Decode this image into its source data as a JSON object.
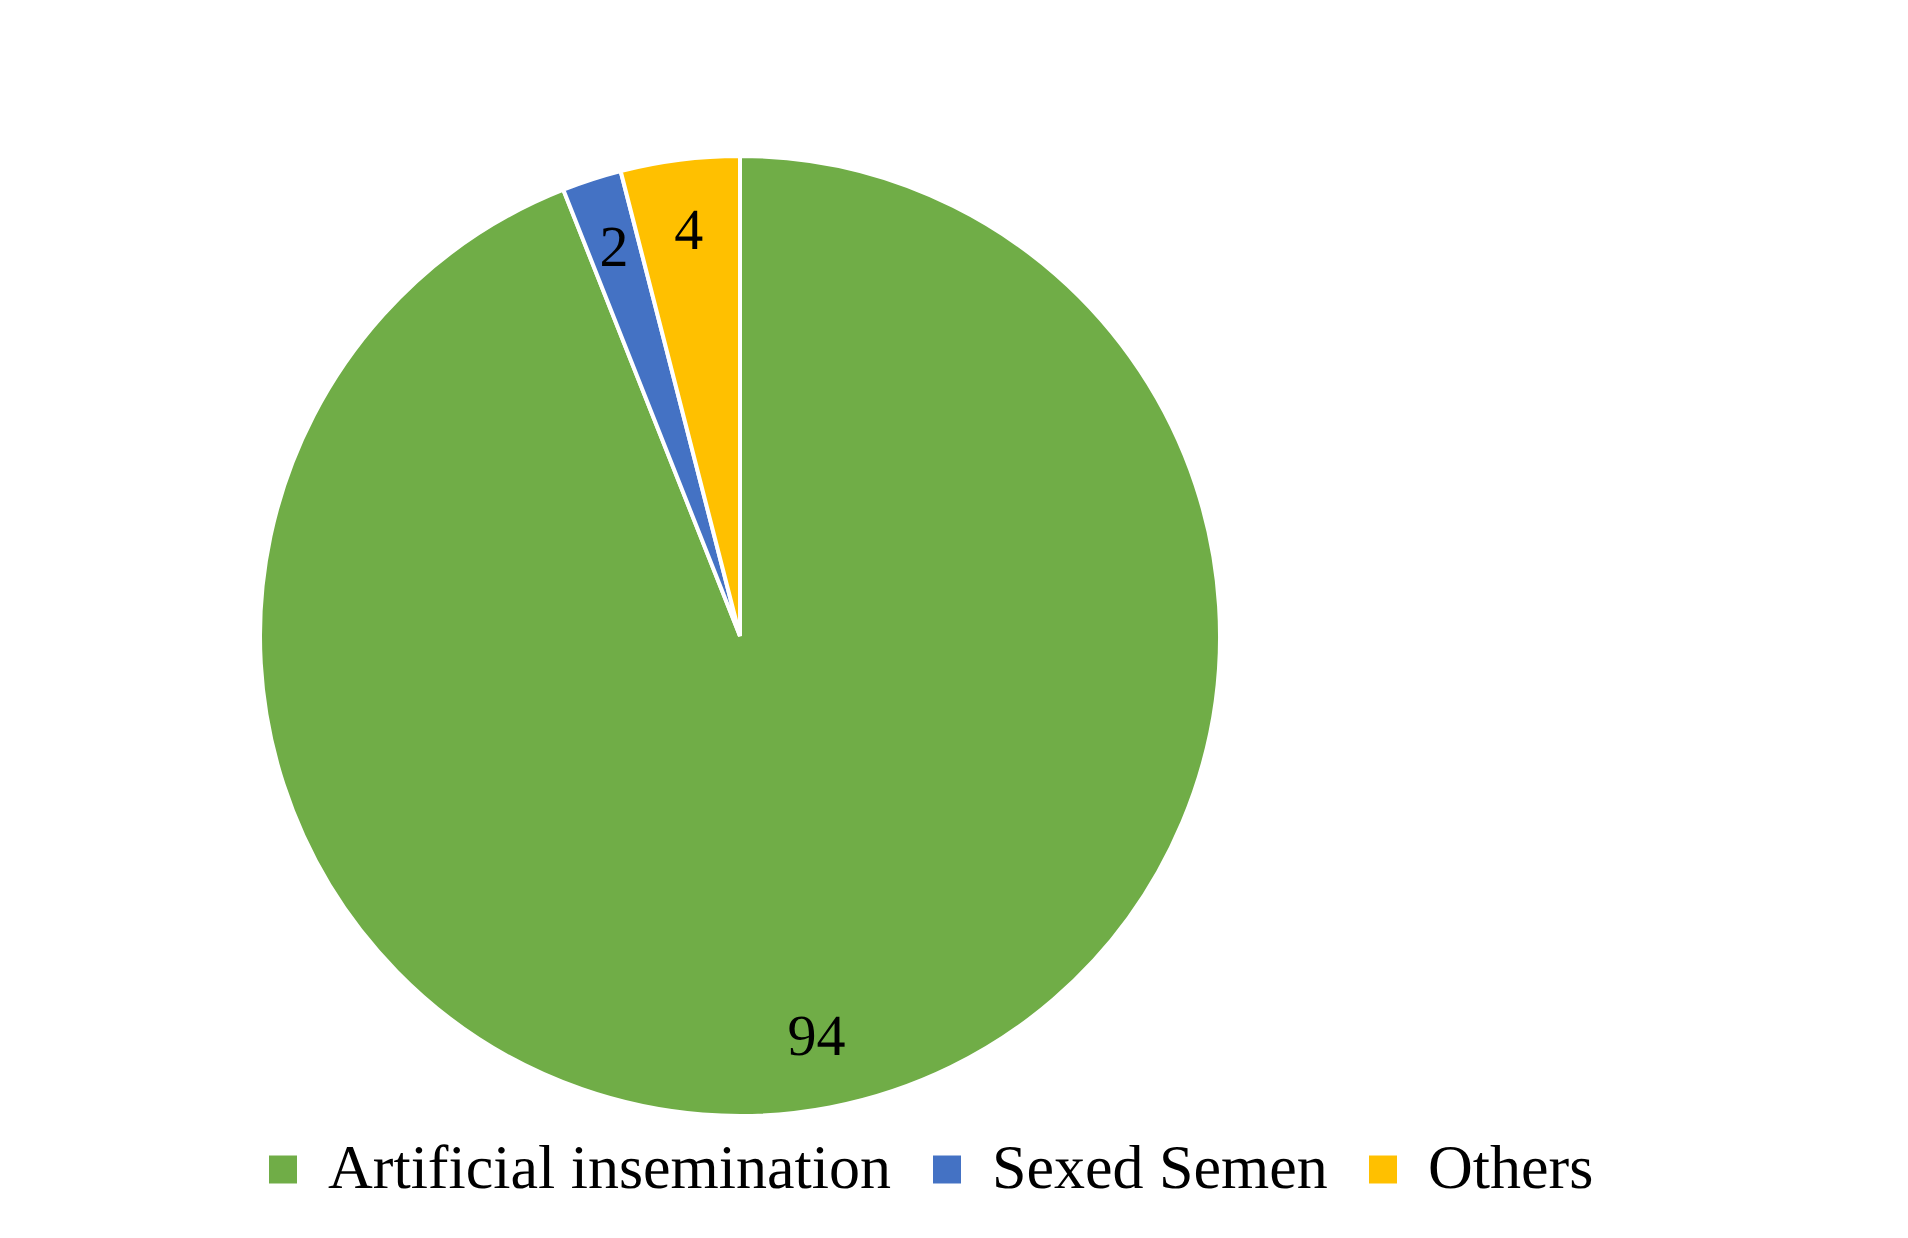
{
  "chart_data": {
    "type": "pie",
    "categories": [
      "Artificial insemination",
      "Sexed Semen",
      "Others"
    ],
    "values": [
      94,
      2,
      4
    ],
    "colors": [
      "#70ad47",
      "#4472c4",
      "#ffc000"
    ],
    "data_labels": true,
    "legend": "bottom"
  }
}
